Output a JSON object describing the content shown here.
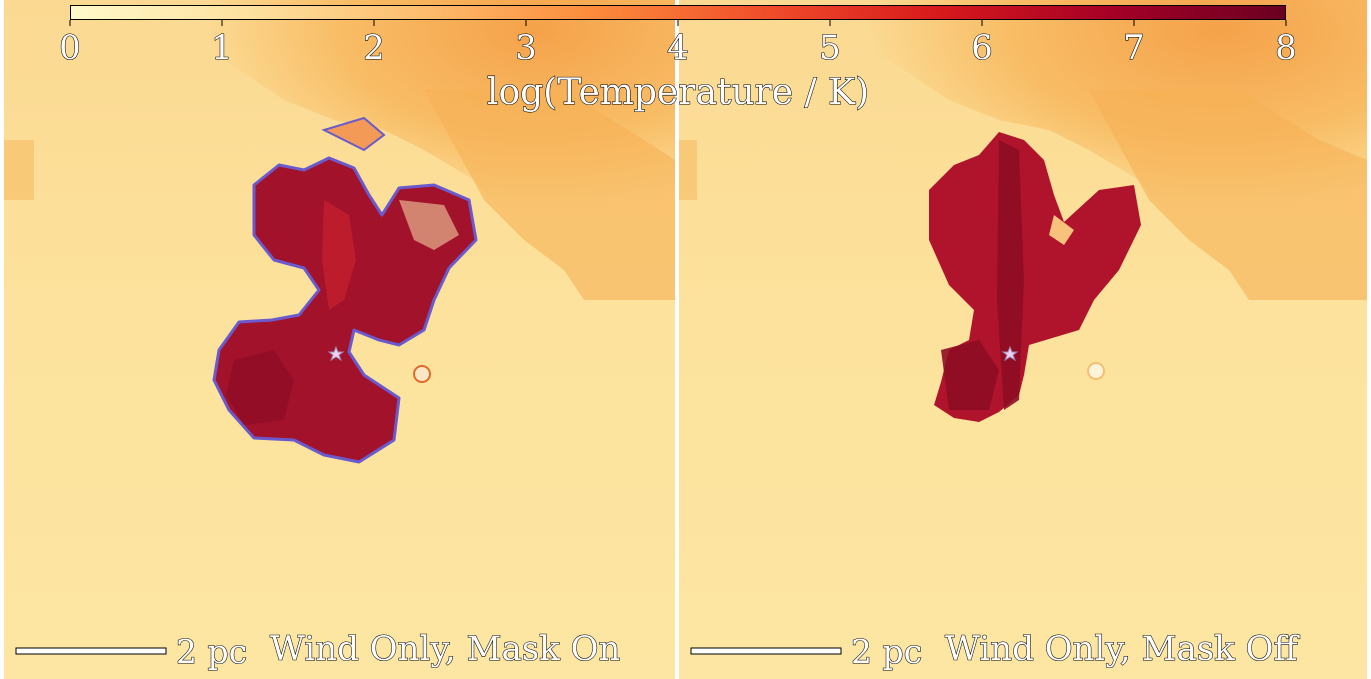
{
  "colorbar": {
    "label": "log(Temperature / K)",
    "min": 0,
    "max": 8,
    "ticks": [
      "0",
      "1",
      "2",
      "3",
      "4",
      "5",
      "6",
      "7",
      "8"
    ],
    "colormap": [
      "#fffacb",
      "#fde2a0",
      "#fdbe6f",
      "#fc8c3c",
      "#f04e2b",
      "#d7191c",
      "#a50026",
      "#6a0021"
    ]
  },
  "panels": [
    {
      "scalebar_label": "2 pc",
      "title": "Wind Only, Mask On",
      "mask_contour": true
    },
    {
      "scalebar_label": "2 pc",
      "title": "Wind Only, Mask Off",
      "mask_contour": false
    }
  ],
  "colors": {
    "background_cool": "#fbe39a",
    "warm_gas": "#f7b45a",
    "hot_bubble": "#a8102a",
    "mask_contour": "#6a5acd"
  },
  "markers": {
    "star_icon": "star-icon"
  }
}
